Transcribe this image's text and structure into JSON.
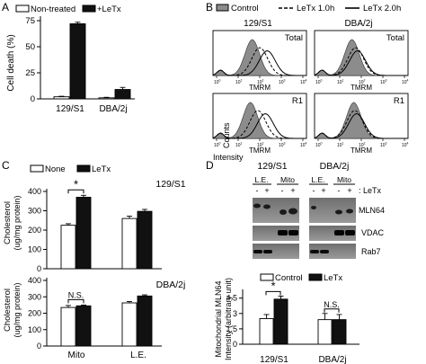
{
  "chart_data": [
    {
      "panel": "A",
      "type": "bar",
      "ylabel": "Cell death (%)",
      "ylim": [
        0,
        75
      ],
      "yticks": [
        "0",
        "25",
        "50",
        "75"
      ],
      "categories": [
        "129/S1",
        "DBA/2j"
      ],
      "legend": [
        "Non-treated",
        "+LeTx"
      ],
      "series": [
        {
          "name": "Non-treated",
          "color": "#ffffff",
          "values": [
            2,
            1
          ],
          "errors": [
            0.5,
            0.5
          ]
        },
        {
          "name": "+LeTx",
          "color": "#111111",
          "values": [
            72,
            9
          ],
          "errors": [
            1.5,
            2
          ]
        }
      ]
    },
    {
      "panel": "B",
      "type": "histogram",
      "legend": [
        "Control",
        "LeTx 1.0h",
        "LeTx 2.0h"
      ],
      "legend_styles": [
        "filled-gray",
        "dashed",
        "solid"
      ],
      "columns": [
        "129/S1",
        "DBA/2j"
      ],
      "rows": [
        "Total",
        "R1"
      ],
      "xlabel": "TMRM",
      "y_caption": "Counts",
      "x_caption": "Intensity",
      "xticks": [
        "10",
        "10",
        "10",
        "10",
        "10"
      ],
      "xtick_exponents": [
        "0",
        "1",
        "2",
        "3",
        "4"
      ]
    },
    {
      "panel": "C",
      "type": "bar",
      "legend": [
        "None",
        "LeTx"
      ],
      "ylabel_line1": "Cholesterol",
      "ylabel_line2": "(ug/mg protein)",
      "categories": [
        "Mito",
        "L.E."
      ],
      "subplots": [
        {
          "title": "129/S1",
          "ylim": [
            0,
            400
          ],
          "yticks": [
            "0",
            "100",
            "200",
            "300",
            "400"
          ],
          "significance": "*",
          "series": [
            {
              "name": "None",
              "color": "#ffffff",
              "values": [
                225,
                260
              ],
              "errors": [
                8,
                12
              ]
            },
            {
              "name": "LeTx",
              "color": "#111111",
              "values": [
                370,
                297
              ],
              "errors": [
                10,
                10
              ]
            }
          ]
        },
        {
          "title": "DBA/2j",
          "ylim": [
            0,
            400
          ],
          "yticks": [
            "0",
            "100",
            "200",
            "300",
            "400"
          ],
          "significance": "N.S.",
          "series": [
            {
              "name": "None",
              "color": "#ffffff",
              "values": [
                235,
                263
              ],
              "errors": [
                12,
                8
              ]
            },
            {
              "name": "LeTx",
              "color": "#111111",
              "values": [
                245,
                305
              ],
              "errors": [
                5,
                7
              ]
            }
          ]
        }
      ]
    },
    {
      "panel": "D",
      "type": "bar",
      "legend": [
        "Control",
        "LeTx"
      ],
      "ylabel_line1": "Mitochondrial MLN64",
      "ylabel_line2": "Intensity (arbitrary unit)",
      "ylim": [
        0,
        5
      ],
      "yticks": [
        "0",
        "1.5",
        "3",
        "4.5"
      ],
      "categories": [
        "129/S1",
        "DBA/2j"
      ],
      "significance": [
        "*",
        "N.S."
      ],
      "series": [
        {
          "name": "Control",
          "color": "#ffffff",
          "values": [
            2.5,
            2.4
          ],
          "errors": [
            0.4,
            0.6
          ]
        },
        {
          "name": "LeTx",
          "color": "#111111",
          "values": [
            4.4,
            2.4
          ],
          "errors": [
            0.3,
            0.5
          ]
        }
      ]
    }
  ],
  "blot": {
    "strains": [
      "129/S1",
      "DBA/2j"
    ],
    "fractions": [
      "L.E.",
      "Mito",
      "L.E.",
      "Mito"
    ],
    "signs": [
      "-",
      "+",
      "-",
      "+",
      "-",
      "+",
      "-",
      "+"
    ],
    "letx_label": ": LeTx",
    "bands": [
      "MLN64",
      "VDAC",
      "Rab7"
    ]
  },
  "panel_letters": [
    "A",
    "B",
    "C",
    "D"
  ]
}
